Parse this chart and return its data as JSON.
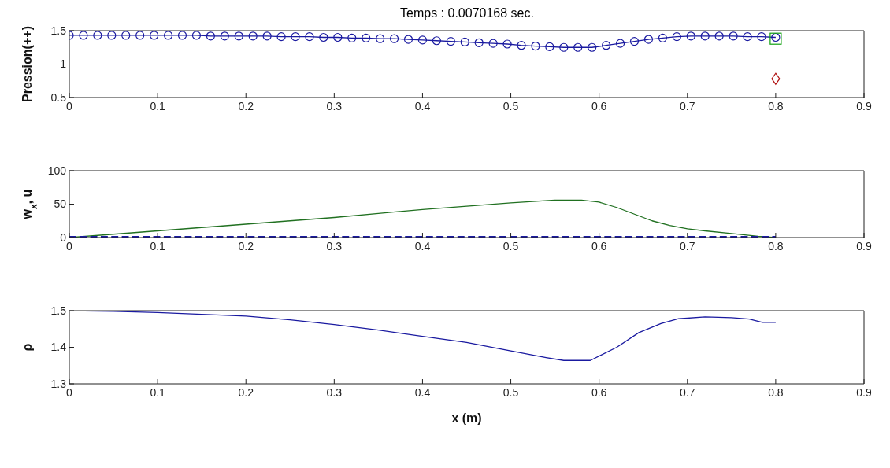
{
  "chart_data": [
    {
      "type": "line",
      "title": "Temps : 0.0070168 sec.",
      "ylabel": "Pression(++)",
      "xlim": [
        0,
        0.9
      ],
      "xticks": [
        0,
        0.1,
        0.2,
        0.3,
        0.4,
        0.5,
        0.6,
        0.7,
        0.8,
        0.9
      ],
      "ylim": [
        0.5,
        1.5
      ],
      "yticks": [
        0.5,
        1,
        1.5
      ],
      "marker": "circle",
      "series": [
        {
          "color": "#1a1aa0",
          "x": [
            0,
            0.016,
            0.032,
            0.048,
            0.064,
            0.08,
            0.096,
            0.112,
            0.128,
            0.144,
            0.16,
            0.176,
            0.192,
            0.208,
            0.224,
            0.24,
            0.256,
            0.272,
            0.288,
            0.304,
            0.32,
            0.336,
            0.352,
            0.368,
            0.384,
            0.4,
            0.416,
            0.432,
            0.448,
            0.464,
            0.48,
            0.496,
            0.512,
            0.528,
            0.544,
            0.56,
            0.576,
            0.592,
            0.608,
            0.624,
            0.64,
            0.656,
            0.672,
            0.688,
            0.704,
            0.72,
            0.736,
            0.752,
            0.768,
            0.784,
            0.8
          ],
          "values": [
            1.43,
            1.43,
            1.43,
            1.43,
            1.43,
            1.43,
            1.43,
            1.43,
            1.43,
            1.43,
            1.42,
            1.42,
            1.42,
            1.42,
            1.42,
            1.41,
            1.41,
            1.41,
            1.4,
            1.4,
            1.39,
            1.39,
            1.38,
            1.38,
            1.37,
            1.36,
            1.35,
            1.34,
            1.33,
            1.32,
            1.31,
            1.3,
            1.28,
            1.27,
            1.26,
            1.25,
            1.25,
            1.25,
            1.28,
            1.31,
            1.34,
            1.37,
            1.39,
            1.41,
            1.42,
            1.42,
            1.42,
            1.42,
            1.41,
            1.41,
            1.4
          ]
        },
        {
          "type": "scatter",
          "marker": "square",
          "color": "#10a010",
          "x": [
            0.8
          ],
          "values": [
            1.38
          ]
        },
        {
          "type": "scatter",
          "marker": "diamond",
          "color": "#b01010",
          "x": [
            0.8
          ],
          "values": [
            0.78
          ]
        }
      ]
    },
    {
      "type": "line",
      "ylabel": "w$_{x}$, u",
      "xlim": [
        0,
        0.9
      ],
      "xticks": [
        0,
        0.1,
        0.2,
        0.3,
        0.4,
        0.5,
        0.6,
        0.7,
        0.8,
        0.9
      ],
      "ylim": [
        0,
        100
      ],
      "yticks": [
        0,
        50,
        100
      ],
      "series": [
        {
          "color": "#207020",
          "x": [
            0,
            0.05,
            0.1,
            0.15,
            0.2,
            0.25,
            0.3,
            0.35,
            0.4,
            0.45,
            0.5,
            0.55,
            0.58,
            0.6,
            0.62,
            0.64,
            0.66,
            0.68,
            0.7,
            0.72,
            0.75,
            0.78,
            0.8
          ],
          "values": [
            0,
            5,
            10,
            15,
            20,
            25,
            30,
            36,
            42,
            47,
            52,
            56,
            56,
            53,
            45,
            35,
            25,
            18,
            13,
            10,
            6,
            2,
            0
          ]
        },
        {
          "color": "#1a1aa0",
          "line_style": "dashed",
          "x": [
            0,
            0.8
          ],
          "values": [
            1,
            1
          ]
        }
      ]
    },
    {
      "type": "line",
      "ylabel": "ρ",
      "xlabel": "x (m)",
      "xlim": [
        0,
        0.9
      ],
      "xticks": [
        0,
        0.1,
        0.2,
        0.3,
        0.4,
        0.5,
        0.6,
        0.7,
        0.8,
        0.9
      ],
      "ylim": [
        1.3,
        1.5
      ],
      "yticks": [
        1.3,
        1.4,
        1.5
      ],
      "series": [
        {
          "color": "#1a1aa0",
          "x": [
            0,
            0.05,
            0.1,
            0.15,
            0.2,
            0.25,
            0.3,
            0.35,
            0.4,
            0.45,
            0.5,
            0.54,
            0.56,
            0.59,
            0.62,
            0.645,
            0.67,
            0.69,
            0.72,
            0.75,
            0.77,
            0.785,
            0.8
          ],
          "values": [
            1.5,
            1.498,
            1.495,
            1.49,
            1.485,
            1.475,
            1.462,
            1.447,
            1.43,
            1.413,
            1.39,
            1.372,
            1.364,
            1.364,
            1.4,
            1.44,
            1.465,
            1.478,
            1.483,
            1.481,
            1.477,
            1.468,
            1.468
          ]
        }
      ]
    }
  ]
}
